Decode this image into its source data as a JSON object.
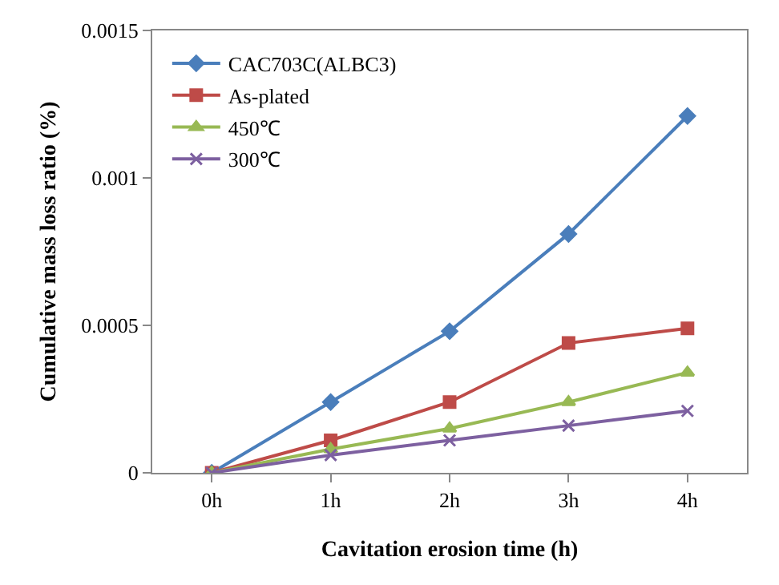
{
  "chart_data": {
    "type": "line",
    "xlabel": "Cavitation erosion time (h)",
    "ylabel": "Cumulative mass loss ratio (%)",
    "categories": [
      "0h",
      "1h",
      "2h",
      "3h",
      "4h"
    ],
    "series": [
      {
        "name": "CAC703C(ALBC3)",
        "color": "#4a7ebb",
        "marker": "diamond",
        "values": [
          0,
          0.00024,
          0.00048,
          0.00081,
          0.00121
        ]
      },
      {
        "name": "As-plated",
        "color": "#be4b48",
        "marker": "square",
        "values": [
          0,
          0.00011,
          0.00024,
          0.00044,
          0.00049
        ]
      },
      {
        "name": "450℃",
        "color": "#98b954",
        "marker": "triangle",
        "values": [
          0,
          8e-05,
          0.00015,
          0.00024,
          0.00034
        ]
      },
      {
        "name": "300℃",
        "color": "#7d60a0",
        "marker": "cross",
        "values": [
          0,
          6e-05,
          0.00011,
          0.00016,
          0.00021
        ]
      }
    ],
    "ylim": [
      0,
      0.0015
    ],
    "yticks": [
      0,
      0.0005,
      0.001,
      0.0015
    ],
    "grid": false,
    "legend": "top left"
  }
}
